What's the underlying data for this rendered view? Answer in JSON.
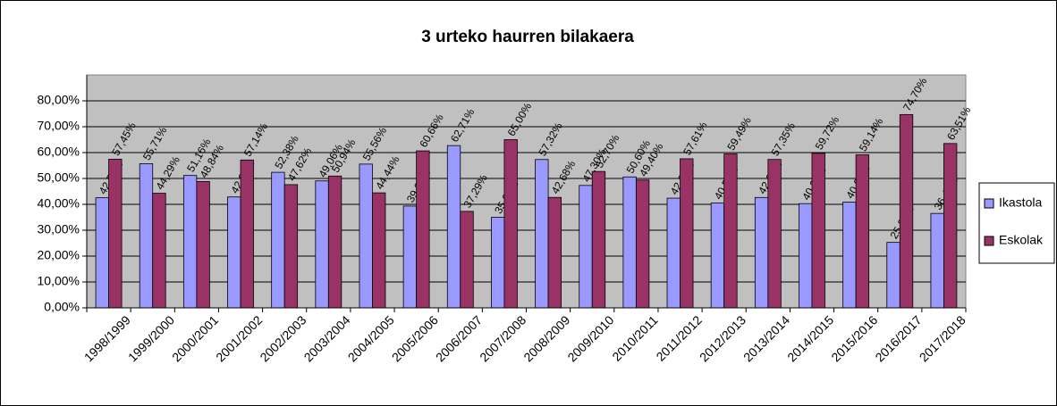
{
  "chart_data": {
    "type": "bar",
    "title": "3 urteko haurren bilakaera",
    "categories": [
      "1998/1999",
      "1999/2000",
      "2000/2001",
      "2001/2002",
      "2002/2003",
      "2003/2004",
      "2004/2005",
      "2005/2006",
      "2006/2007",
      "2007/2008",
      "2008/2009",
      "2009/2010",
      "2010/2011",
      "2011/2012",
      "2012/2013",
      "2013/2014",
      "2014/2015",
      "2015/2016",
      "2016/2017",
      "2017/2018"
    ],
    "series": [
      {
        "name": "Ikastola",
        "color": "#9999ff",
        "values": [
          42.55,
          55.71,
          51.16,
          42.86,
          52.38,
          49.06,
          55.56,
          39.34,
          62.71,
          35.0,
          57.32,
          47.3,
          50.6,
          42.39,
          40.51,
          42.65,
          40.28,
          40.86,
          25.3,
          36.49
        ],
        "value_labels": [
          "42,55%",
          "55,71%",
          "51,16%",
          "42,86%",
          "52,38%",
          "49,06%",
          "55,56%",
          "39,34%",
          "62,71%",
          "35,00%",
          "57,32%",
          "47,30%",
          "50,60%",
          "42,39%",
          "40,51%",
          "42,65%",
          "40,28%",
          "40,86%",
          "25,30%",
          "36,49%"
        ]
      },
      {
        "name": "Eskolak",
        "color": "#993366",
        "values": [
          57.45,
          44.29,
          48.84,
          57.14,
          47.62,
          50.94,
          44.44,
          60.66,
          37.29,
          65.0,
          42.68,
          52.7,
          49.4,
          57.61,
          59.49,
          57.35,
          59.72,
          59.14,
          74.7,
          63.51
        ],
        "value_labels": [
          "57,45%",
          "44,29%",
          "48,84%",
          "57,14%",
          "47,62%",
          "50,94%",
          "44,44%",
          "60,66%",
          "37,29%",
          "65,00%",
          "42,68%",
          "52,70%",
          "49,40%",
          "57,61%",
          "59,49%",
          "57,35%",
          "59,72%",
          "59,14%",
          "74,70%",
          "63,51%"
        ]
      }
    ],
    "ylim": [
      0,
      90
    ],
    "yticks": [
      {
        "value": 0,
        "label": "0,00%"
      },
      {
        "value": 10,
        "label": "10,00%"
      },
      {
        "value": 20,
        "label": "20,00%"
      },
      {
        "value": 30,
        "label": "30,00%"
      },
      {
        "value": 40,
        "label": "40,00%"
      },
      {
        "value": 50,
        "label": "50,00%"
      },
      {
        "value": 60,
        "label": "60,00%"
      },
      {
        "value": 70,
        "label": "70,00%"
      },
      {
        "value": 80,
        "label": "80,00%"
      }
    ],
    "grid": true,
    "legend": "right"
  }
}
